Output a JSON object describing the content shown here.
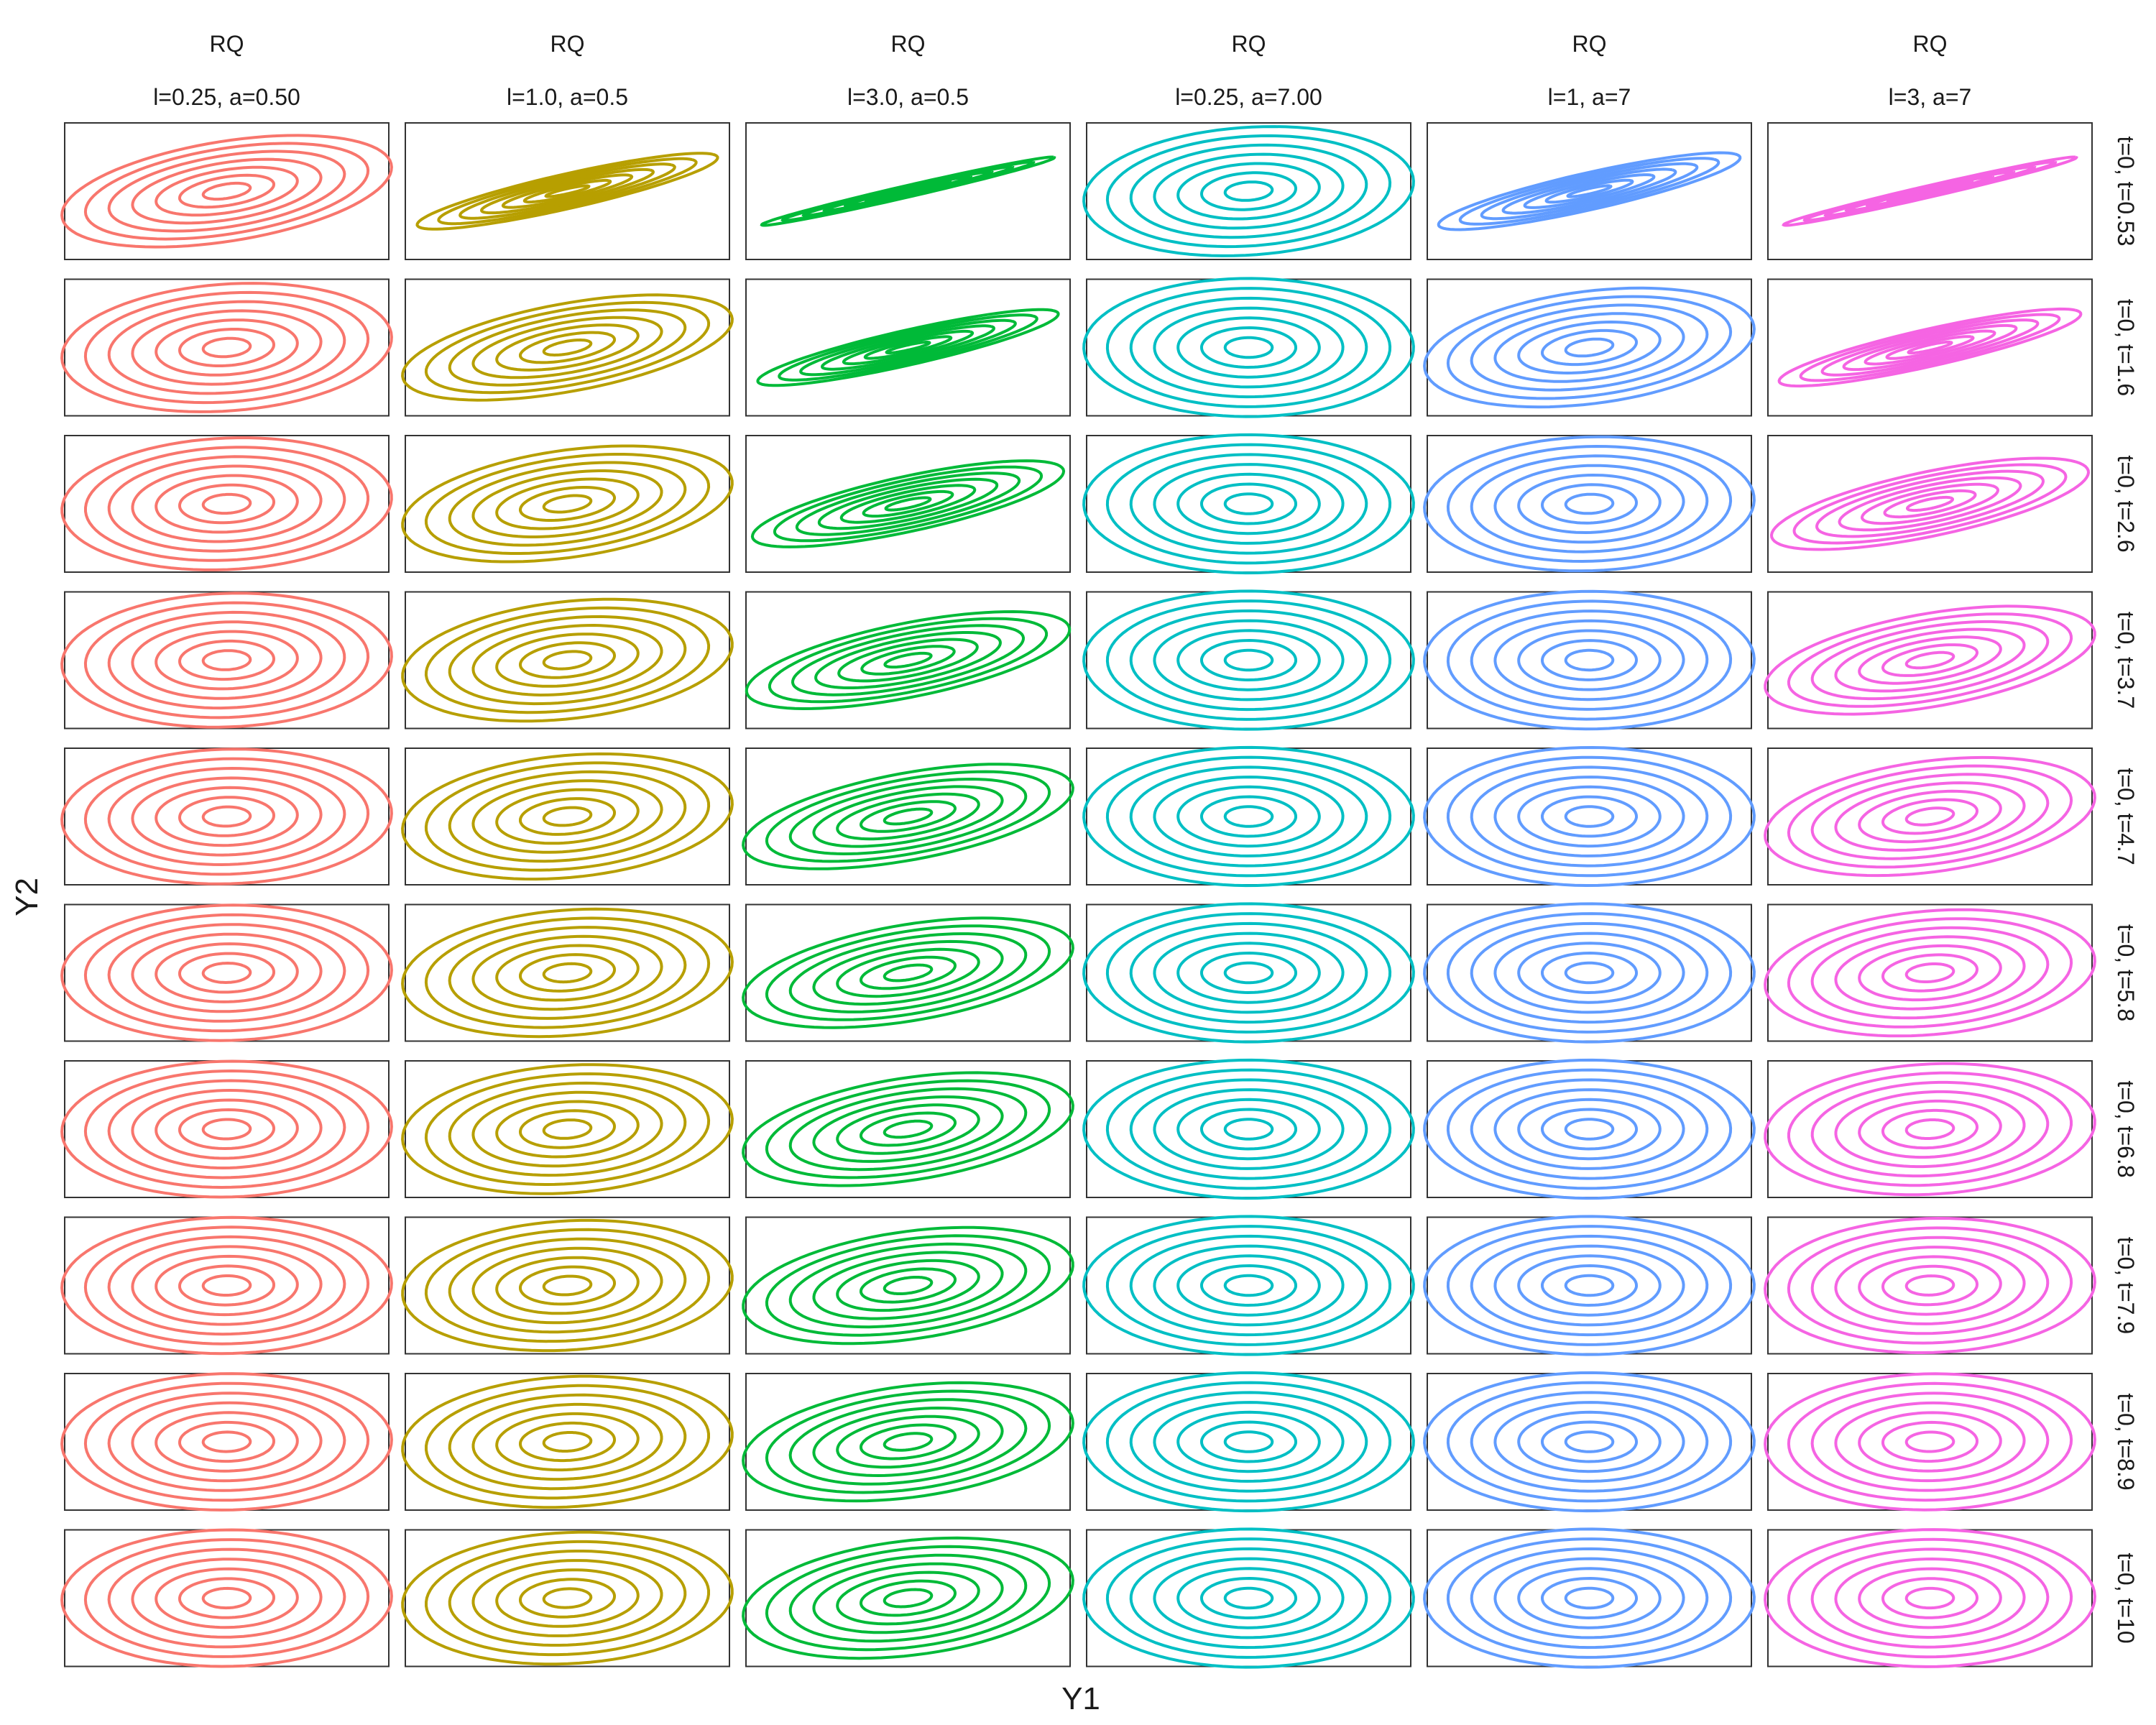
{
  "chart_data": {
    "type": "contour",
    "facet_layout": "grid",
    "xlabel": "Y1",
    "ylabel": "Y2",
    "axis_ticks": false,
    "grid": false,
    "legend": "none",
    "columns": [
      {
        "kernel": "RQ",
        "params": "l=0.25, a=0.50",
        "l": 0.25,
        "a": 0.5,
        "color": "#F8766D"
      },
      {
        "kernel": "RQ",
        "params": "l=1.0, a=0.5",
        "l": 1.0,
        "a": 0.5,
        "color": "#B79F00"
      },
      {
        "kernel": "RQ",
        "params": "l=3.0, a=0.5",
        "l": 3.0,
        "a": 0.5,
        "color": "#00BA38"
      },
      {
        "kernel": "RQ",
        "params": "l=0.25, a=7.00",
        "l": 0.25,
        "a": 7.0,
        "color": "#00BFC4"
      },
      {
        "kernel": "RQ",
        "params": "l=1, a=7",
        "l": 1,
        "a": 7,
        "color": "#619CFF"
      },
      {
        "kernel": "RQ",
        "params": "l=3, a=7",
        "l": 3,
        "a": 7,
        "color": "#F564E3"
      }
    ],
    "rows": [
      {
        "label": "t=0, t=0.53",
        "t1": 0,
        "t2": 0.53
      },
      {
        "label": "t=0, t=1.6",
        "t1": 0,
        "t2": 1.6
      },
      {
        "label": "t=0, t=2.6",
        "t1": 0,
        "t2": 2.6
      },
      {
        "label": "t=0, t=3.7",
        "t1": 0,
        "t2": 3.7
      },
      {
        "label": "t=0, t=4.7",
        "t1": 0,
        "t2": 4.7
      },
      {
        "label": "t=0, t=5.8",
        "t1": 0,
        "t2": 5.8
      },
      {
        "label": "t=0, t=6.8",
        "t1": 0,
        "t2": 6.8
      },
      {
        "label": "t=0, t=7.9",
        "t1": 0,
        "t2": 7.9
      },
      {
        "label": "t=0, t=8.9",
        "t1": 0,
        "t2": 8.9
      },
      {
        "label": "t=0, t=10",
        "t1": 0,
        "t2": 10
      }
    ],
    "contour_levels": 7
  }
}
